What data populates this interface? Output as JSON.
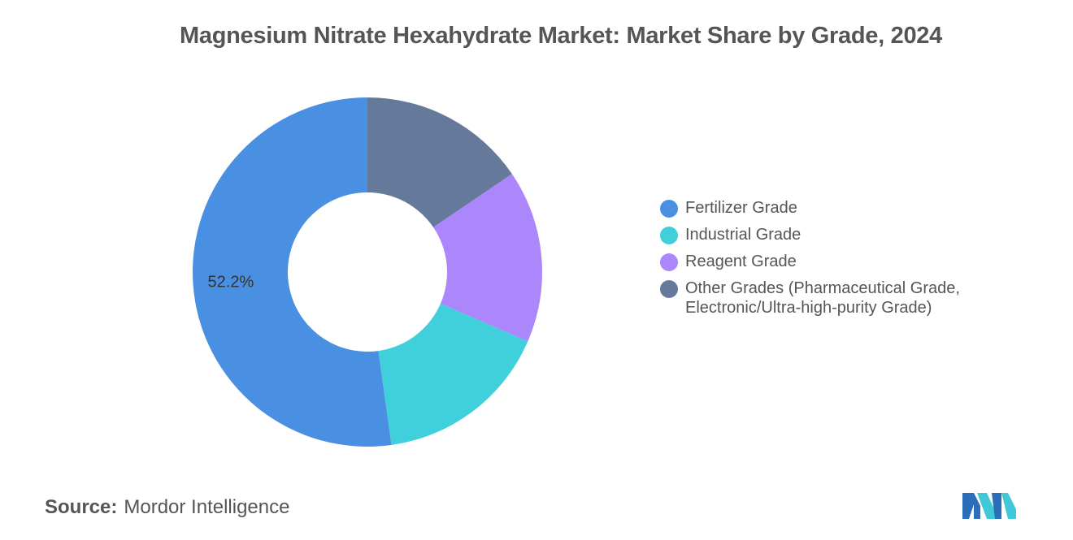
{
  "chart_data": {
    "type": "pie",
    "donut": true,
    "title": "Magnesium Nitrate Hexahydrate Market: Market Share by Grade, 2024",
    "categories": [
      "Fertilizer Grade",
      "Industrial Grade",
      "Reagent Grade",
      "Other Grades (Pharmaceutical Grade, Electronic/Ultra-high-purity Grade)"
    ],
    "values": [
      52.2,
      16.3,
      16.0,
      15.5
    ],
    "colors": [
      "#4a90e2",
      "#40d0dc",
      "#ac86fb",
      "#65799b"
    ],
    "data_labels": [
      "52.2%",
      "",
      "",
      ""
    ],
    "legend_placement": "right"
  },
  "source": {
    "label": "Source:",
    "text": "Mordor Intelligence"
  },
  "logo": {
    "name": "mordor-intelligence-logo",
    "colors": [
      "#2a6fb8",
      "#40c8d8"
    ]
  }
}
